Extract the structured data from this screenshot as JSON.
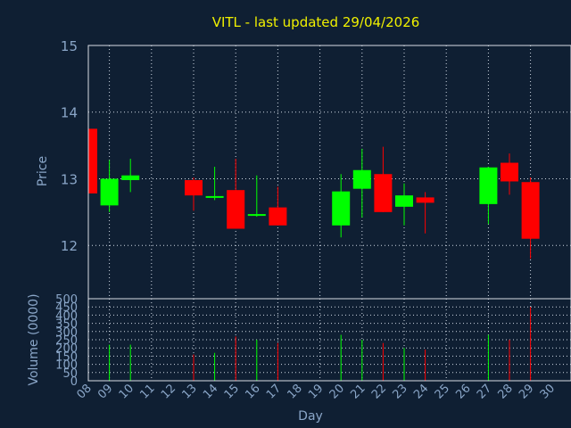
{
  "chart_data": {
    "title": "VITL - last updated 29/04/2026",
    "price_panel": {
      "type": "candlestick",
      "ylabel": "Price",
      "ylim": [
        11.2,
        15
      ],
      "yticks": [
        "12",
        "13",
        "14",
        "15"
      ],
      "grid": true
    },
    "volume_panel": {
      "type": "bar",
      "ylabel": "Volume (0000)",
      "ylim": [
        0,
        500
      ],
      "yticks": [
        "0",
        "50",
        "100",
        "150",
        "200",
        "250",
        "300",
        "350",
        "400",
        "450",
        "500"
      ],
      "grid": true
    },
    "xlabel": "Day",
    "x_tick_labels": [
      "08",
      "09",
      "10",
      "11",
      "12",
      "13",
      "14",
      "15",
      "16",
      "17",
      "18",
      "19",
      "20",
      "21",
      "22",
      "23",
      "24",
      "25",
      "26",
      "27",
      "28",
      "29",
      "30"
    ],
    "colors": {
      "up": "#00ff00",
      "down": "#ff0000",
      "background": "#0f1f33",
      "axis_text": "#8aa6c8",
      "title": "#f0f000"
    },
    "candles": [
      {
        "day": "08",
        "open": 13.75,
        "high": 13.75,
        "low": 12.78,
        "close": 12.78
      },
      {
        "day": "09",
        "open": 12.6,
        "high": 13.28,
        "low": 12.5,
        "close": 13.0
      },
      {
        "day": "10",
        "open": 12.98,
        "high": 13.3,
        "low": 12.8,
        "close": 13.05
      },
      {
        "day": "13",
        "open": 12.98,
        "high": 13.02,
        "low": 12.52,
        "close": 12.75
      },
      {
        "day": "14",
        "open": 12.72,
        "high": 13.18,
        "low": 12.68,
        "close": 12.74
      },
      {
        "day": "15",
        "open": 12.83,
        "high": 13.3,
        "low": 12.25,
        "close": 12.25
      },
      {
        "day": "16",
        "open": 12.45,
        "high": 13.05,
        "low": 12.43,
        "close": 12.47
      },
      {
        "day": "17",
        "open": 12.57,
        "high": 12.88,
        "low": 12.3,
        "close": 12.3
      },
      {
        "day": "20",
        "open": 12.3,
        "high": 13.07,
        "low": 12.12,
        "close": 12.81
      },
      {
        "day": "21",
        "open": 12.85,
        "high": 13.45,
        "low": 12.42,
        "close": 13.13
      },
      {
        "day": "22",
        "open": 13.07,
        "high": 13.48,
        "low": 12.5,
        "close": 12.5
      },
      {
        "day": "23",
        "open": 12.58,
        "high": 12.93,
        "low": 12.3,
        "close": 12.75
      },
      {
        "day": "24",
        "open": 12.72,
        "high": 12.8,
        "low": 12.18,
        "close": 12.64
      },
      {
        "day": "27",
        "open": 12.62,
        "high": 13.18,
        "low": 12.32,
        "close": 13.17
      },
      {
        "day": "28",
        "open": 13.24,
        "high": 13.38,
        "low": 12.76,
        "close": 12.96
      },
      {
        "day": "29",
        "open": 12.95,
        "high": 13.02,
        "low": 11.8,
        "close": 12.1
      }
    ],
    "volume": [
      {
        "day": "08",
        "value": 0,
        "direction": "down"
      },
      {
        "day": "09",
        "value": 220,
        "direction": "up"
      },
      {
        "day": "10",
        "value": 220,
        "direction": "up"
      },
      {
        "day": "13",
        "value": 160,
        "direction": "down"
      },
      {
        "day": "14",
        "value": 170,
        "direction": "up"
      },
      {
        "day": "15",
        "value": 270,
        "direction": "down"
      },
      {
        "day": "16",
        "value": 250,
        "direction": "up"
      },
      {
        "day": "17",
        "value": 230,
        "direction": "down"
      },
      {
        "day": "20",
        "value": 280,
        "direction": "up"
      },
      {
        "day": "21",
        "value": 250,
        "direction": "up"
      },
      {
        "day": "22",
        "value": 230,
        "direction": "down"
      },
      {
        "day": "23",
        "value": 200,
        "direction": "up"
      },
      {
        "day": "24",
        "value": 190,
        "direction": "down"
      },
      {
        "day": "27",
        "value": 280,
        "direction": "up"
      },
      {
        "day": "28",
        "value": 250,
        "direction": "down"
      },
      {
        "day": "29",
        "value": 450,
        "direction": "down"
      }
    ]
  }
}
